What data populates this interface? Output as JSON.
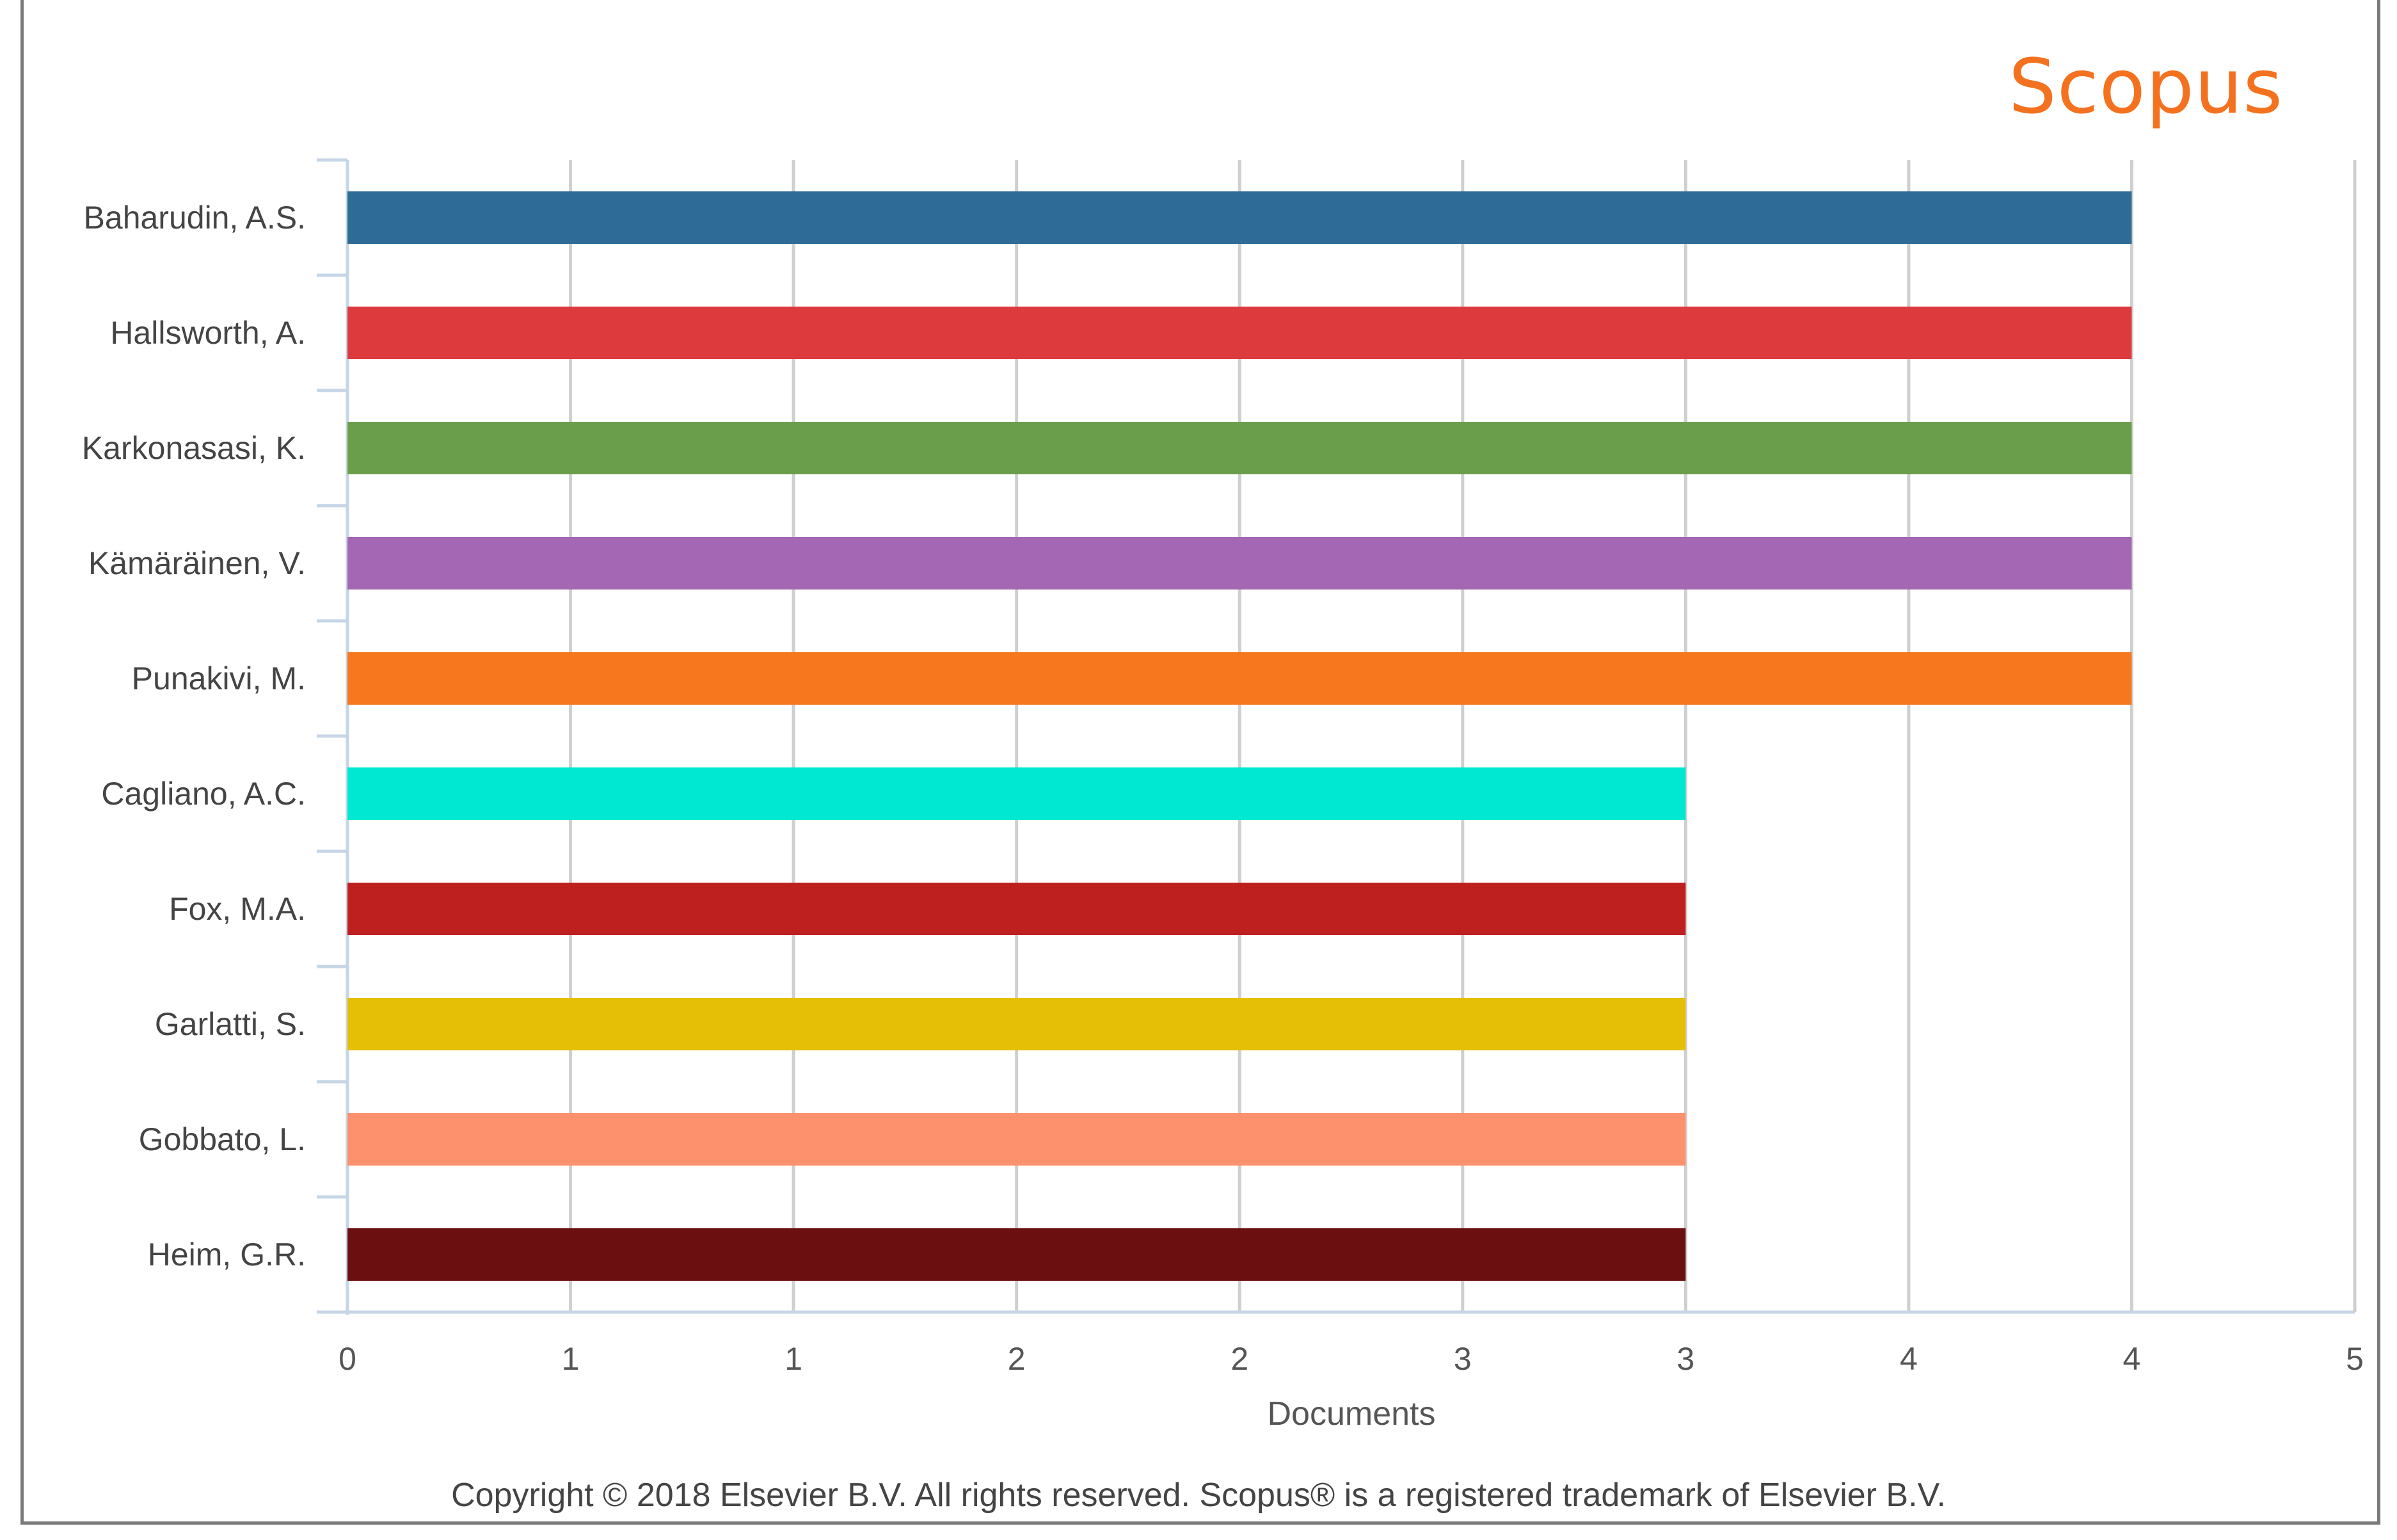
{
  "brand": {
    "logo_text": "Scopus",
    "color": "#f4721f"
  },
  "copyright": "Copyright © 2018 Elsevier B.V. All rights reserved. Scopus® is a registered trademark of Elsevier B.V.",
  "chart_data": {
    "type": "bar",
    "orientation": "horizontal",
    "title": "",
    "xlabel": "Documents",
    "ylabel": "",
    "xlim": [
      0,
      4.5
    ],
    "x_tick_values": [
      0,
      0.5,
      1,
      1.5,
      2,
      2.5,
      3,
      3.5,
      4,
      4.5
    ],
    "x_tick_labels": [
      "0",
      "1",
      "1",
      "2",
      "2",
      "3",
      "3",
      "4",
      "4",
      "5"
    ],
    "grid": true,
    "legend": "none",
    "categories": [
      "Baharudin, A.S.",
      "Hallsworth, A.",
      "Karkonasasi, K.",
      "Kämäräinen, V.",
      "Punakivi, M.",
      "Cagliano, A.C.",
      "Fox, M.A.",
      "Garlatti, S.",
      "Gobbato, L.",
      "Heim, G.R."
    ],
    "values": [
      4,
      4,
      4,
      4,
      4,
      3,
      3,
      3,
      3,
      3
    ],
    "colors": [
      "#2e6b96",
      "#dd3a3d",
      "#6a9e4b",
      "#a367b3",
      "#f7771f",
      "#00e8d1",
      "#be2020",
      "#e4bf06",
      "#fd916e",
      "#6b0f10"
    ]
  }
}
